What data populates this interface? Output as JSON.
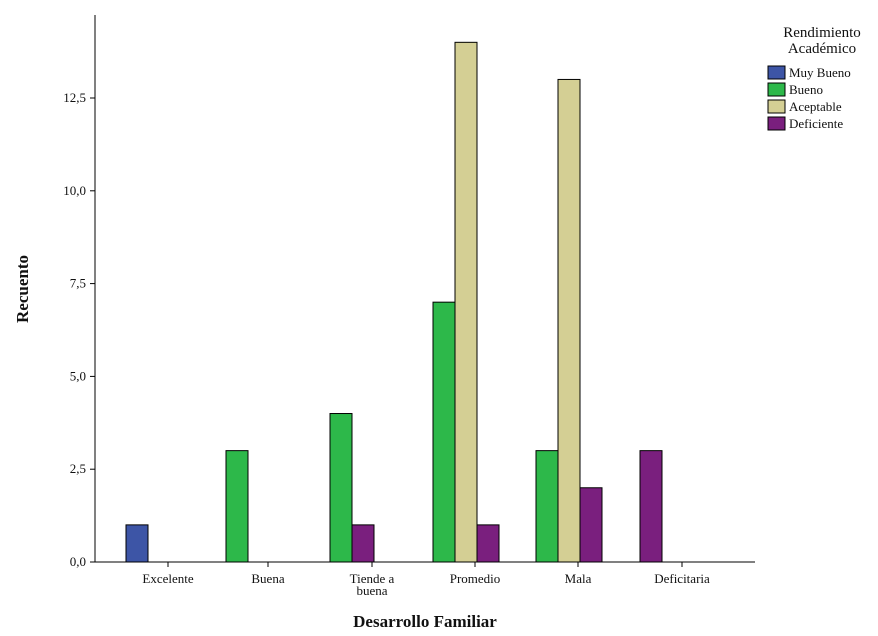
{
  "chart_data": {
    "type": "bar",
    "title": "",
    "xlabel": "Desarrollo Familiar",
    "ylabel": "Recuento",
    "ylim": [
      0,
      15
    ],
    "yticks": [
      0,
      2.5,
      5,
      7.5,
      10,
      12.5
    ],
    "ytick_labels": [
      "0,0",
      "2,5",
      "5,0",
      "7,5",
      "10,0",
      "12,5"
    ],
    "grid": false,
    "legend": {
      "title_lines": [
        "Rendimiento",
        "Académico"
      ],
      "position": "top-right"
    },
    "categories": [
      "Excelente",
      "Buena",
      "Tiende a buena",
      "Promedio",
      "Mala",
      "Deficitaria"
    ],
    "category_label_lines": [
      [
        "Excelente"
      ],
      [
        "Buena"
      ],
      [
        "Tiende a",
        "buena"
      ],
      [
        "Promedio"
      ],
      [
        "Mala"
      ],
      [
        "Deficitaria"
      ]
    ],
    "series": [
      {
        "name": "Muy Bueno",
        "color": "#3d55a6",
        "values": [
          1,
          0,
          0,
          0,
          0,
          0
        ]
      },
      {
        "name": "Bueno",
        "color": "#2db84a",
        "values": [
          0,
          3,
          4,
          7,
          3,
          0
        ]
      },
      {
        "name": "Aceptable",
        "color": "#d4cf94",
        "values": [
          0,
          0,
          0,
          14,
          13,
          0
        ]
      },
      {
        "name": "Deficiente",
        "color": "#7a1f7e",
        "values": [
          0,
          0,
          1,
          1,
          2,
          3
        ]
      }
    ]
  }
}
